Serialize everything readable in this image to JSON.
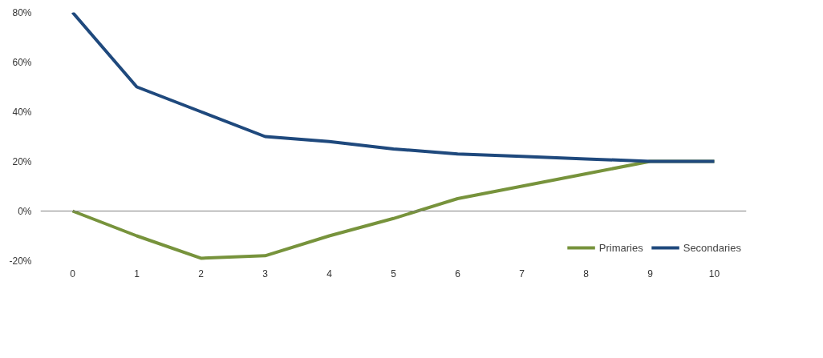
{
  "chart_data": {
    "type": "line",
    "categories": [
      "0",
      "1",
      "2",
      "3",
      "4",
      "5",
      "6",
      "7",
      "8",
      "9",
      "10"
    ],
    "series": [
      {
        "name": "Primaries",
        "color": "#77933c",
        "values": [
          0,
          -10,
          -19,
          -18,
          -10,
          -3,
          5,
          10,
          15,
          20,
          20
        ]
      },
      {
        "name": "Secondaries",
        "color": "#1f497d",
        "values": [
          80,
          50,
          40,
          30,
          28,
          25,
          23,
          22,
          21,
          20,
          20
        ]
      }
    ],
    "ylim": [
      -20,
      80
    ],
    "yticks": [
      {
        "value": -20,
        "label": "-20%"
      },
      {
        "value": 0,
        "label": "0%"
      },
      {
        "value": 20,
        "label": "20%"
      },
      {
        "value": 40,
        "label": "40%"
      },
      {
        "value": 60,
        "label": "60%"
      },
      {
        "value": 80,
        "label": "80%"
      }
    ],
    "ref_lines": [
      {
        "axis": "y",
        "value": 0,
        "color": "#808080"
      }
    ],
    "grid": false,
    "legend": "bottom right",
    "marker": "none",
    "line_style": "solid"
  }
}
